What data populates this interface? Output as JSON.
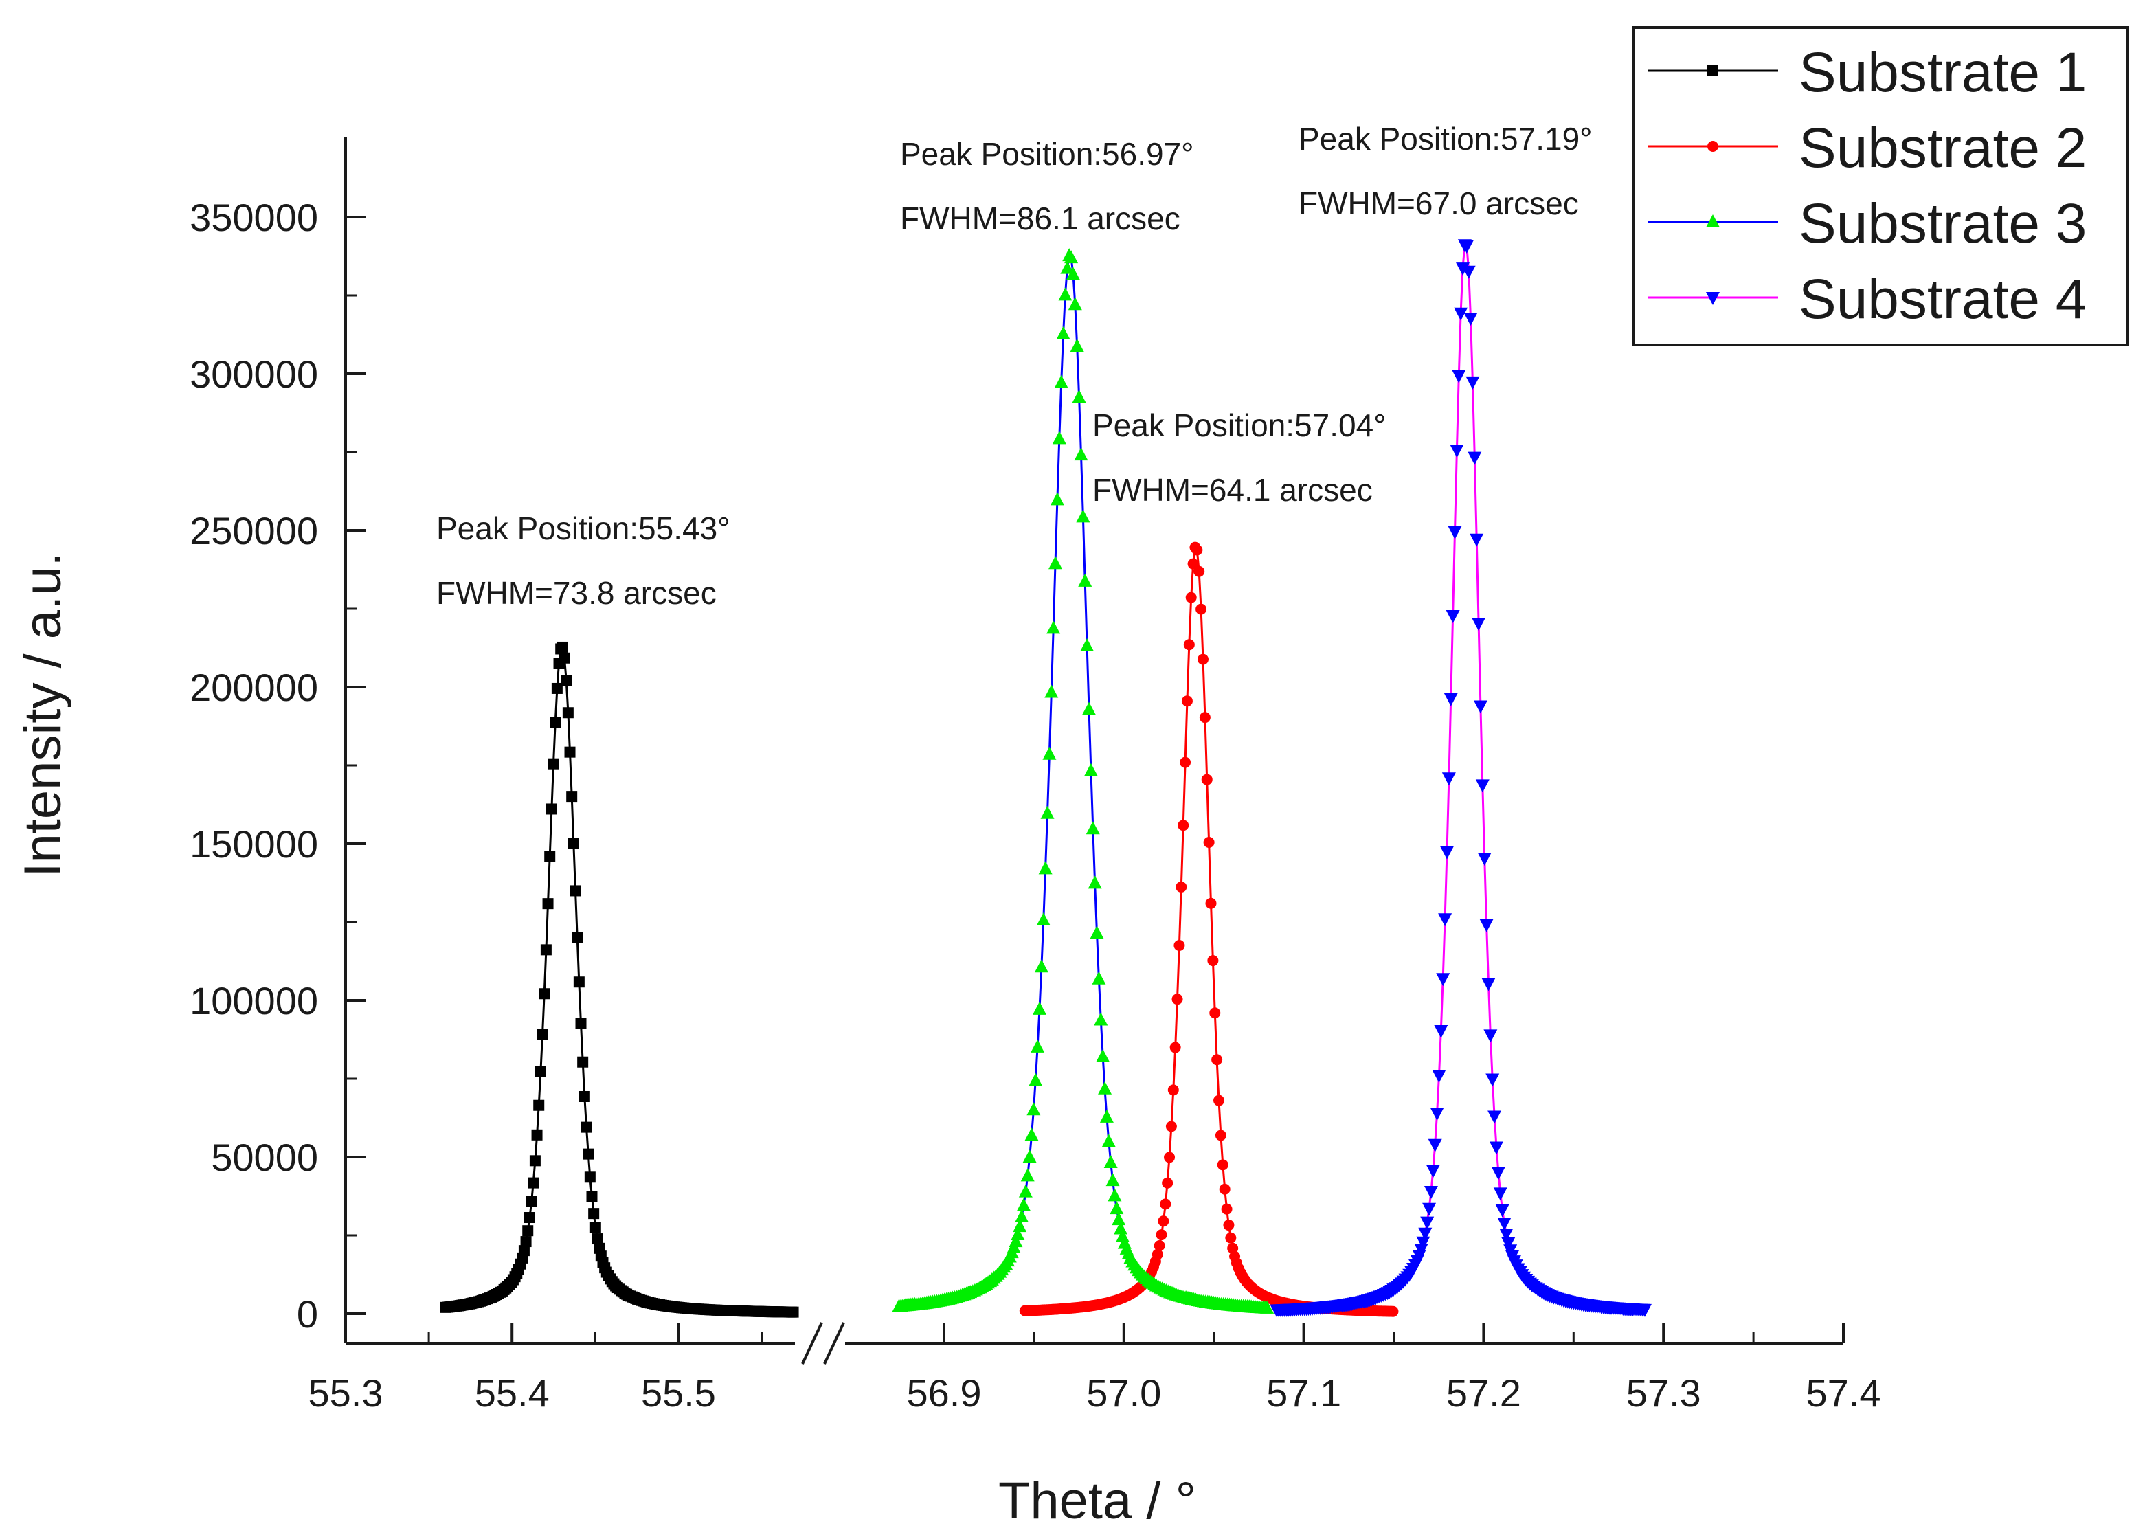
{
  "chart_data": {
    "type": "line",
    "title": "",
    "xlabel": "Theta / °",
    "ylabel": "Intensity / a.u.",
    "x_axis": {
      "broken": true,
      "segments": [
        {
          "xlim": [
            55.3,
            55.57
          ],
          "ticks": [
            "55.3",
            "55.4",
            "55.5"
          ]
        },
        {
          "xlim": [
            56.845,
            57.4
          ],
          "ticks": [
            "56.9",
            "57.0",
            "57.1",
            "57.2",
            "57.3",
            "57.4"
          ]
        }
      ]
    },
    "ylim": [
      -10000,
      375000
    ],
    "yticks": [
      "0",
      "50000",
      "100000",
      "150000",
      "200000",
      "250000",
      "300000",
      "350000"
    ],
    "grid": false,
    "legend_position": "top-right",
    "series": [
      {
        "name": "Substrate 1",
        "color": "#000000",
        "marker": "square",
        "peak_x": 55.43,
        "peak_y": 213000,
        "fwhm_deg": 0.0205,
        "x_range": [
          55.36,
          55.57
        ],
        "segment": 0
      },
      {
        "name": "Substrate 2",
        "color": "#ff0000",
        "marker": "circle",
        "peak_x": 57.04,
        "peak_y": 245000,
        "fwhm_deg": 0.0178,
        "x_range": [
          56.945,
          57.15
        ],
        "segment": 1
      },
      {
        "name": "Substrate 3",
        "color": "#0000ff",
        "line_color": "#0000ff",
        "marker_color": "#00ee00",
        "marker": "triangle-up",
        "peak_x": 56.97,
        "peak_y": 338000,
        "fwhm_deg": 0.0239,
        "x_range": [
          56.875,
          57.08
        ],
        "segment": 1
      },
      {
        "name": "Substrate 4",
        "color": "#ff00ff",
        "line_color": "#ff00ff",
        "marker_color": "#0000ff",
        "marker": "triangle-down",
        "peak_x": 57.19,
        "peak_y": 342000,
        "fwhm_deg": 0.0186,
        "x_range": [
          57.085,
          57.29
        ],
        "segment": 1
      }
    ],
    "annotations": [
      {
        "line1": "Peak Position:55.43°",
        "line2": "FWHM=73.8 arcsec"
      },
      {
        "line1": "Peak Position:56.97°",
        "line2": "FWHM=86.1 arcsec"
      },
      {
        "line1": "Peak Position:57.04°",
        "line2": "FWHM=64.1 arcsec"
      },
      {
        "line1": "Peak Position:57.19°",
        "line2": "FWHM=67.0 arcsec"
      }
    ]
  }
}
